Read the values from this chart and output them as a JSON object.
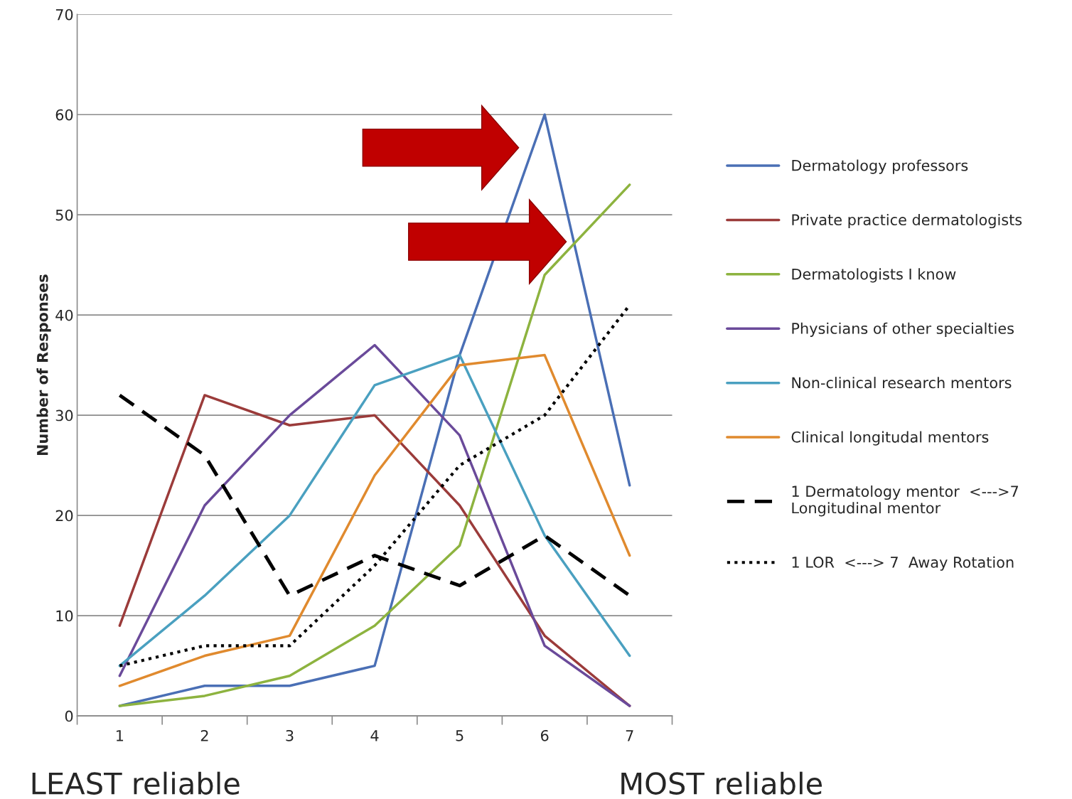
{
  "chart_data": {
    "type": "line",
    "ylabel": "Number of Responses",
    "x": [
      1,
      2,
      3,
      4,
      5,
      6,
      7
    ],
    "xlim": [
      0.5,
      7.5
    ],
    "xticks": [
      1,
      2,
      3,
      4,
      5,
      6,
      7
    ],
    "ylim": [
      0,
      70
    ],
    "yticks": [
      0,
      10,
      20,
      30,
      40,
      50,
      60,
      70
    ],
    "grid": "y",
    "legend": "right",
    "marker": "none",
    "annotations": [
      "LEAST reliable",
      "MOST reliable"
    ],
    "series": [
      {
        "name": "Dermatology professors",
        "color": "#4a6fb5",
        "line_style": "solid",
        "values": [
          1,
          3,
          3,
          5,
          36,
          60,
          23
        ]
      },
      {
        "name": "Private practice dermatologists",
        "color": "#9b3b3a",
        "line_style": "solid",
        "values": [
          9,
          32,
          29,
          30,
          21,
          8,
          1
        ]
      },
      {
        "name": "Dermatologists I know",
        "color": "#8db33f",
        "line_style": "solid",
        "values": [
          1,
          2,
          4,
          9,
          17,
          44,
          53
        ]
      },
      {
        "name": "Physicians of other specialties",
        "color": "#6a4a9a",
        "line_style": "solid",
        "values": [
          4,
          21,
          30,
          37,
          28,
          7,
          1
        ]
      },
      {
        "name": "Non-clinical research mentors",
        "color": "#4aa0c0",
        "line_style": "solid",
        "values": [
          5,
          12,
          20,
          33,
          36,
          18,
          6
        ]
      },
      {
        "name": "Clinical longitudal mentors",
        "color": "#e08a2e",
        "line_style": "solid",
        "values": [
          3,
          6,
          8,
          24,
          35,
          36,
          16
        ]
      },
      {
        "name": "1 Dermatology mentor  <--->7\nLongitudinal mentor",
        "color": "#000000",
        "line_style": "dashed",
        "values": [
          32,
          26,
          12,
          16,
          13,
          18,
          12
        ]
      },
      {
        "name": "1 LOR  <---> 7  Away Rotation",
        "color": "#000000",
        "line_style": "dotted",
        "values": [
          5,
          7,
          7,
          15,
          25,
          30,
          41
        ]
      }
    ]
  }
}
